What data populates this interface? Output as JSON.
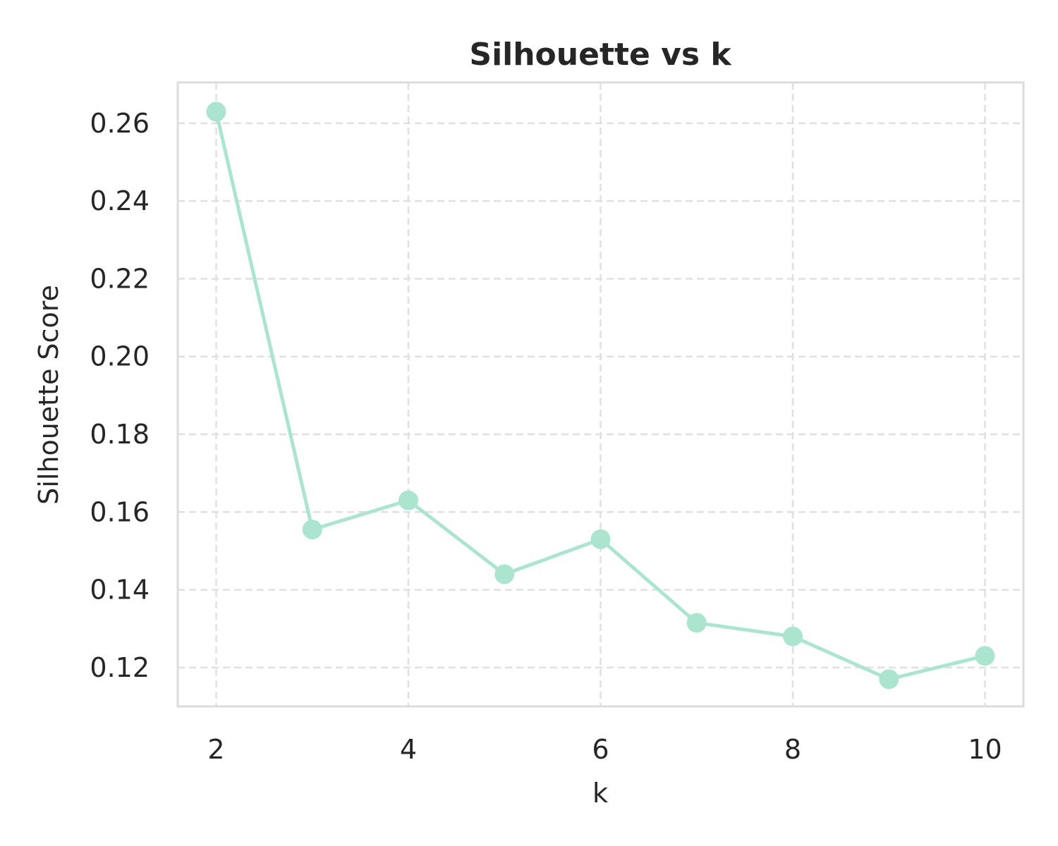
{
  "chart_data": {
    "type": "line",
    "title": "Silhouette vs k",
    "xlabel": "k",
    "ylabel": "Silhouette Score",
    "x": [
      2,
      3,
      4,
      5,
      6,
      7,
      8,
      9,
      10
    ],
    "series": [
      {
        "values": [
          0.263,
          0.1555,
          0.163,
          0.144,
          0.153,
          0.1315,
          0.128,
          0.117,
          0.123
        ]
      }
    ],
    "xlim": [
      1.6,
      10.4
    ],
    "ylim": [
      0.11,
      0.2705
    ],
    "xticks": [
      2,
      4,
      6,
      8,
      10
    ],
    "xtick_labels": [
      "2",
      "4",
      "6",
      "8",
      "10"
    ],
    "yticks": [
      0.12,
      0.14,
      0.16,
      0.18,
      0.2,
      0.22,
      0.24,
      0.26
    ],
    "ytick_labels": [
      "0.12",
      "0.14",
      "0.16",
      "0.18",
      "0.20",
      "0.22",
      "0.24",
      "0.26"
    ],
    "grid": true,
    "line_color": "#abe5d0",
    "marker": "circle"
  }
}
